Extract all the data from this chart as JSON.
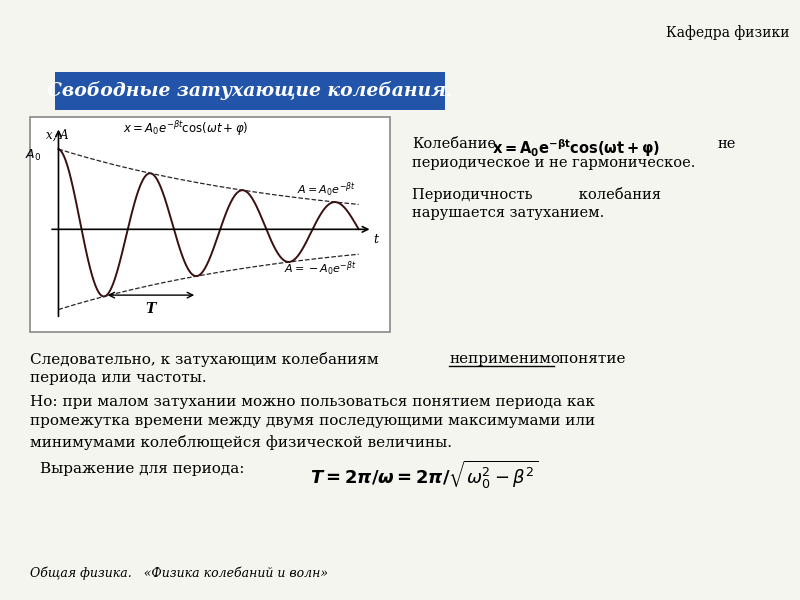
{
  "bg_color": "#f5f5f0",
  "title_bg": "#2255aa",
  "title_text": "Свободные затухающие колебания.",
  "title_color": "white",
  "header_right": "Кафедра физики",
  "footer_text": "Общая физика.   «Физика колебаний и волн»",
  "beta": 0.18,
  "omega": 3.14,
  "A0": 1.0,
  "t_max": 6.5
}
